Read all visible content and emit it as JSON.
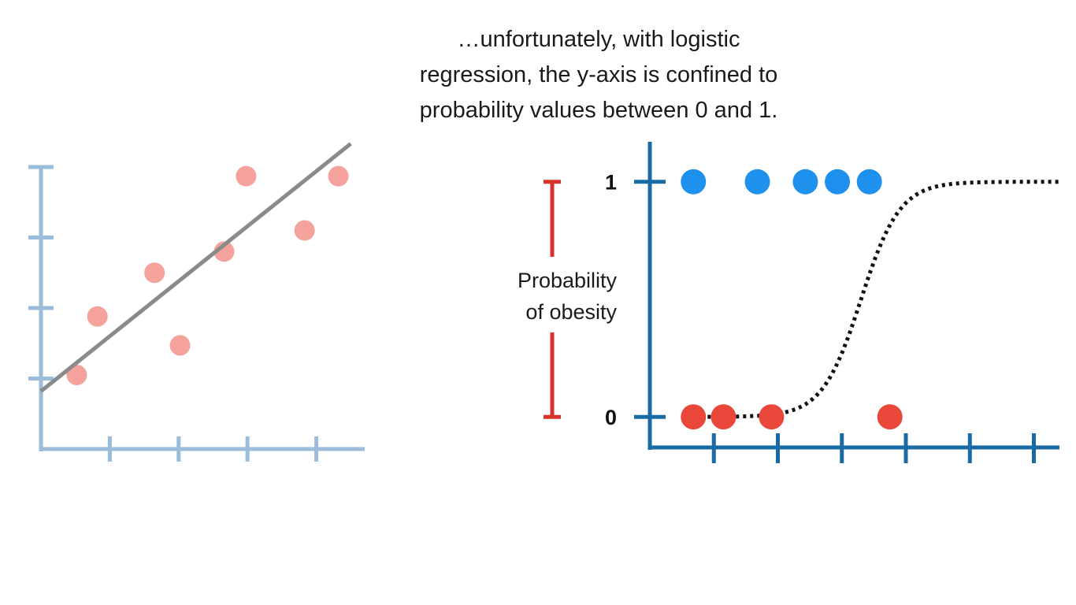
{
  "caption": {
    "lines": [
      "…unfortunately, with logistic",
      "regression, the y-axis is confined to",
      "probability values between 0 and 1."
    ]
  },
  "chart_data": [
    {
      "type": "scatter",
      "title": "",
      "xlabel": "",
      "ylabel": "",
      "xlim": [
        0,
        4.6
      ],
      "ylim": [
        0,
        4
      ],
      "x_ticks": [
        1,
        2,
        3,
        4
      ],
      "y_ticks": [
        1,
        2,
        3,
        4
      ],
      "grid": false,
      "points": [
        {
          "x": 0.52,
          "y": 1.05
        },
        {
          "x": 0.82,
          "y": 1.88
        },
        {
          "x": 1.65,
          "y": 2.5
        },
        {
          "x": 2.02,
          "y": 1.47
        },
        {
          "x": 2.66,
          "y": 2.8
        },
        {
          "x": 2.98,
          "y": 3.87
        },
        {
          "x": 3.83,
          "y": 3.1
        },
        {
          "x": 4.32,
          "y": 3.87
        }
      ],
      "fit_line": {
        "x": [
          0,
          4.5
        ],
        "y": [
          0.82,
          4.33
        ]
      },
      "colors": {
        "axis": "#9bbcda",
        "points": "#f5a29c",
        "line": "#8a8a8a"
      }
    },
    {
      "type": "scatter",
      "title": "",
      "xlabel": "",
      "ylabel": "Probability\nof obesity",
      "ylabel_lines": [
        "Probability",
        "of obesity"
      ],
      "xlim": [
        0,
        6.4
      ],
      "ylim": [
        -0.13,
        1.17
      ],
      "x_ticks": [
        1,
        2,
        3,
        4,
        5,
        6
      ],
      "y_ticks": [
        0,
        1
      ],
      "y_tick_labels": [
        "0",
        "1"
      ],
      "grid": false,
      "series": [
        {
          "values": [
            {
              "x": 0.68,
              "y": 1
            },
            {
              "x": 1.68,
              "y": 1
            },
            {
              "x": 2.43,
              "y": 1
            },
            {
              "x": 2.93,
              "y": 1
            },
            {
              "x": 3.43,
              "y": 1
            }
          ],
          "color": "#1e90ee"
        },
        {
          "values": [
            {
              "x": 0.68,
              "y": 0
            },
            {
              "x": 1.15,
              "y": 0
            },
            {
              "x": 1.9,
              "y": 0
            },
            {
              "x": 3.75,
              "y": 0
            }
          ],
          "color": "#e8473a"
        }
      ],
      "curve": {
        "type": "logistic",
        "x": [
          0.57,
          6.4
        ],
        "midpoint": 3.3,
        "steepness": 3.3,
        "style": "dotted"
      },
      "colors": {
        "axis": "#1a6aa6",
        "curve": "#111111",
        "range_marker": "#d9342b"
      }
    }
  ]
}
